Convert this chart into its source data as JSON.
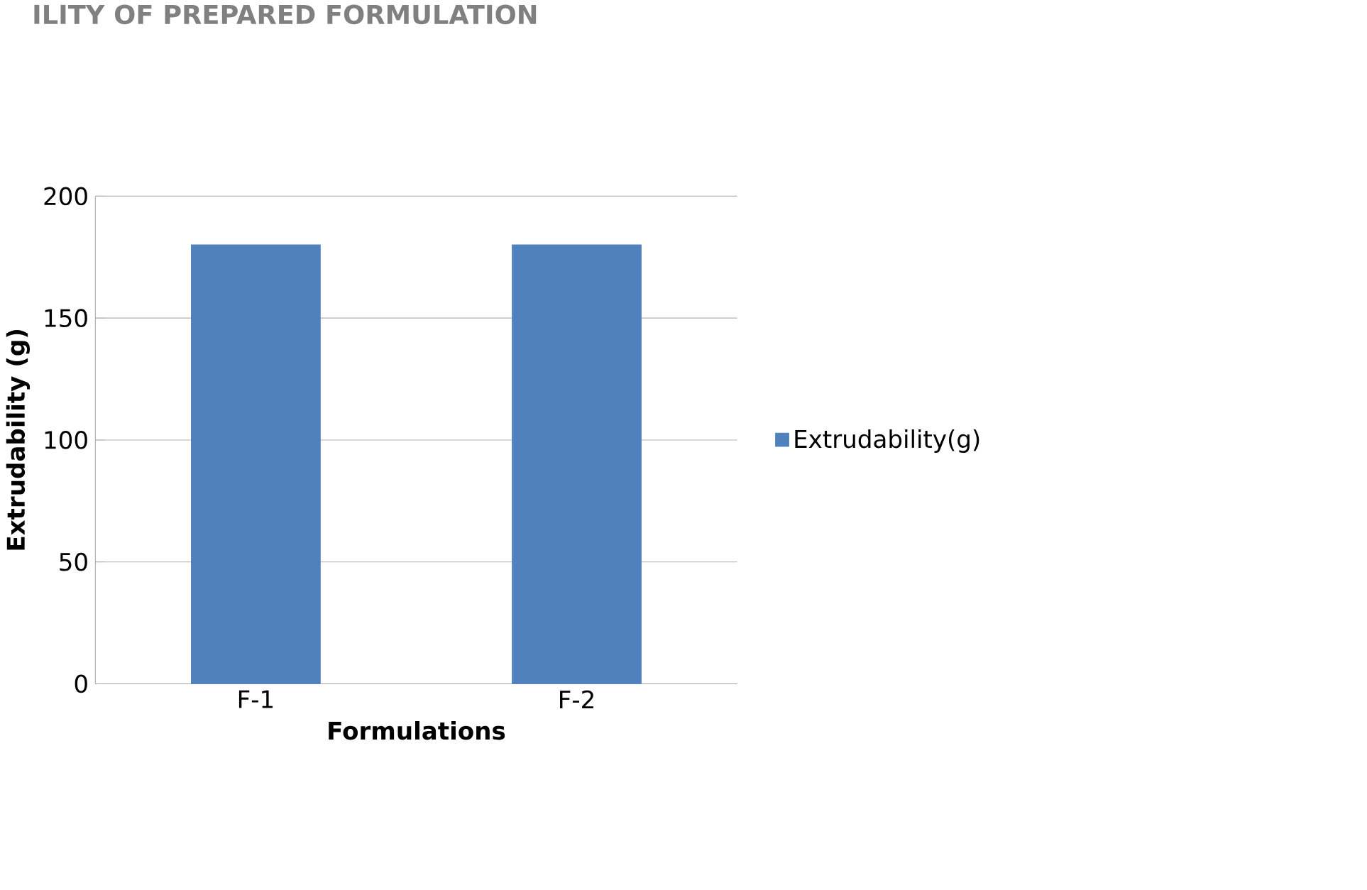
{
  "chart_data": {
    "type": "bar",
    "title": "ILITY OF PREPARED FORMULATION",
    "xlabel": "Formulations",
    "ylabel": "Extrudability (g)",
    "categories": [
      "F-1",
      "F-2"
    ],
    "series": [
      {
        "name": "Extrudability(g)",
        "color": "#4f81bd",
        "values": [
          180,
          180
        ]
      }
    ],
    "ylim": [
      0,
      200
    ],
    "yticks": [
      0,
      50,
      100,
      150,
      200
    ],
    "grid": "y",
    "legend": "right"
  }
}
